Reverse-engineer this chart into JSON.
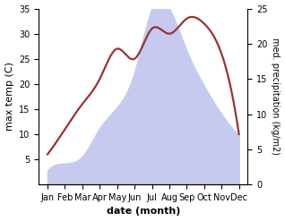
{
  "months": [
    "Jan",
    "Feb",
    "Mar",
    "Apr",
    "May",
    "Jun",
    "Jul",
    "Aug",
    "Sep",
    "Oct",
    "Nov",
    "Dec"
  ],
  "temperature": [
    6,
    11,
    16,
    21,
    27,
    25,
    31,
    30,
    33,
    32,
    26,
    10
  ],
  "precipitation": [
    2,
    3,
    4,
    8,
    11,
    16,
    25,
    25,
    19,
    14,
    10,
    7
  ],
  "temp_color": "#993333",
  "precip_fill_color": "#c5caee",
  "temp_ylim": [
    0,
    35
  ],
  "precip_ylim": [
    0,
    25
  ],
  "temp_yticks": [
    5,
    10,
    15,
    20,
    25,
    30,
    35
  ],
  "precip_yticks": [
    0,
    5,
    10,
    15,
    20,
    25
  ],
  "xlabel": "date (month)",
  "ylabel_left": "max temp (C)",
  "ylabel_right": "med. precipitation (kg/m2)",
  "background_color": "#ffffff",
  "label_fontsize": 8,
  "tick_fontsize": 7
}
